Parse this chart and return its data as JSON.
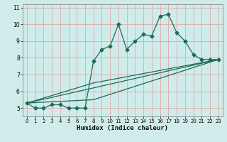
{
  "xlabel": "Humidex (Indice chaleur)",
  "bg_color": "#d0ecea",
  "grid_color": "#e0a8a8",
  "line_color": "#1a6b5a",
  "xlim": [
    -0.5,
    23.5
  ],
  "ylim": [
    4.5,
    11.2
  ],
  "xticks": [
    0,
    1,
    2,
    3,
    4,
    5,
    6,
    7,
    8,
    9,
    10,
    11,
    12,
    13,
    14,
    15,
    16,
    17,
    18,
    19,
    20,
    21,
    22,
    23
  ],
  "yticks": [
    5,
    6,
    7,
    8,
    9,
    10,
    11
  ],
  "series1_x": [
    0,
    1,
    2,
    3,
    4,
    5,
    6,
    7,
    8,
    9,
    10,
    11,
    12,
    13,
    14,
    15,
    16,
    17,
    18,
    19,
    20,
    21,
    22,
    23
  ],
  "series1_y": [
    5.3,
    5.0,
    5.0,
    5.2,
    5.2,
    5.0,
    5.0,
    5.0,
    7.8,
    8.5,
    8.7,
    10.0,
    8.5,
    9.0,
    9.4,
    9.3,
    10.5,
    10.6,
    9.5,
    9.0,
    8.2,
    7.9,
    7.9,
    7.9
  ],
  "trend1_x": [
    0,
    23
  ],
  "trend1_y": [
    5.3,
    7.9
  ],
  "trend2_x": [
    0,
    8,
    23
  ],
  "trend2_y": [
    5.3,
    5.5,
    7.9
  ],
  "trend3_x": [
    0,
    8,
    23
  ],
  "trend3_y": [
    5.3,
    6.5,
    7.9
  ]
}
